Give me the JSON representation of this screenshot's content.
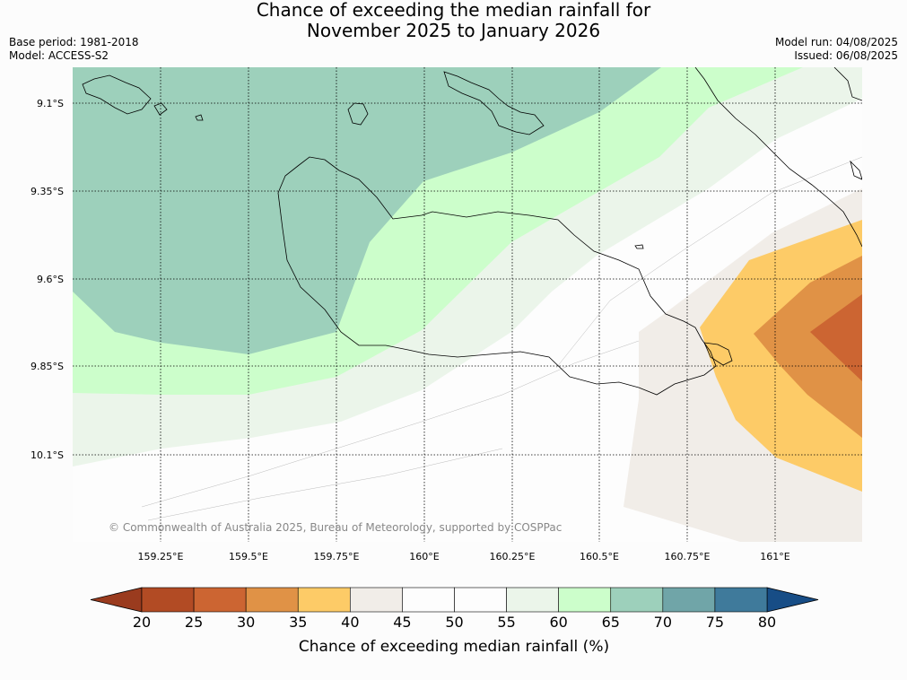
{
  "title": {
    "line1": "Chance of exceeding the median rainfall for",
    "line2": "November 2025 to January 2026"
  },
  "meta": {
    "base_period": "Base period: 1981-2018",
    "model": "Model: ACCESS-S2",
    "model_run": "Model run: 04/08/2025",
    "issued": "Issued: 06/08/2025"
  },
  "copyright": "© Commonwealth of Australia 2025, Bureau of Meteorology, supported by COSPPac",
  "lat_labels": [
    "9.1°S",
    "9.35°S",
    "9.6°S",
    "9.85°S",
    "10.1°S"
  ],
  "lon_labels": [
    "159.25°E",
    "159.5°E",
    "159.75°E",
    "160°E",
    "160.25°E",
    "160.5°E",
    "160.75°E",
    "161°E"
  ],
  "colorbar": {
    "title": "Chance of exceeding median rainfall (%)",
    "ticks": [
      "20",
      "25",
      "30",
      "35",
      "40",
      "45",
      "50",
      "55",
      "60",
      "65",
      "70",
      "75",
      "80"
    ],
    "under_color": "#9a3b1e",
    "over_color": "#174d86",
    "colors": [
      "#b24b24",
      "#cc6532",
      "#e09246",
      "#fdcb67",
      "#f1ede8",
      "#fdfdfd",
      "#fdfdfd",
      "#ebf5ea",
      "#ccfecb",
      "#9dd0bb",
      "#70a5a8",
      "#3f7a9b"
    ]
  },
  "chart_data": {
    "type": "heatmap",
    "variable": "Chance of exceeding median rainfall (%)",
    "lon_range": [
      159.0,
      161.25
    ],
    "lat_range": [
      -10.35,
      -9.0
    ],
    "levels": [
      20,
      25,
      30,
      35,
      40,
      45,
      50,
      55,
      60,
      65,
      70,
      75,
      80
    ],
    "grid": true
  }
}
